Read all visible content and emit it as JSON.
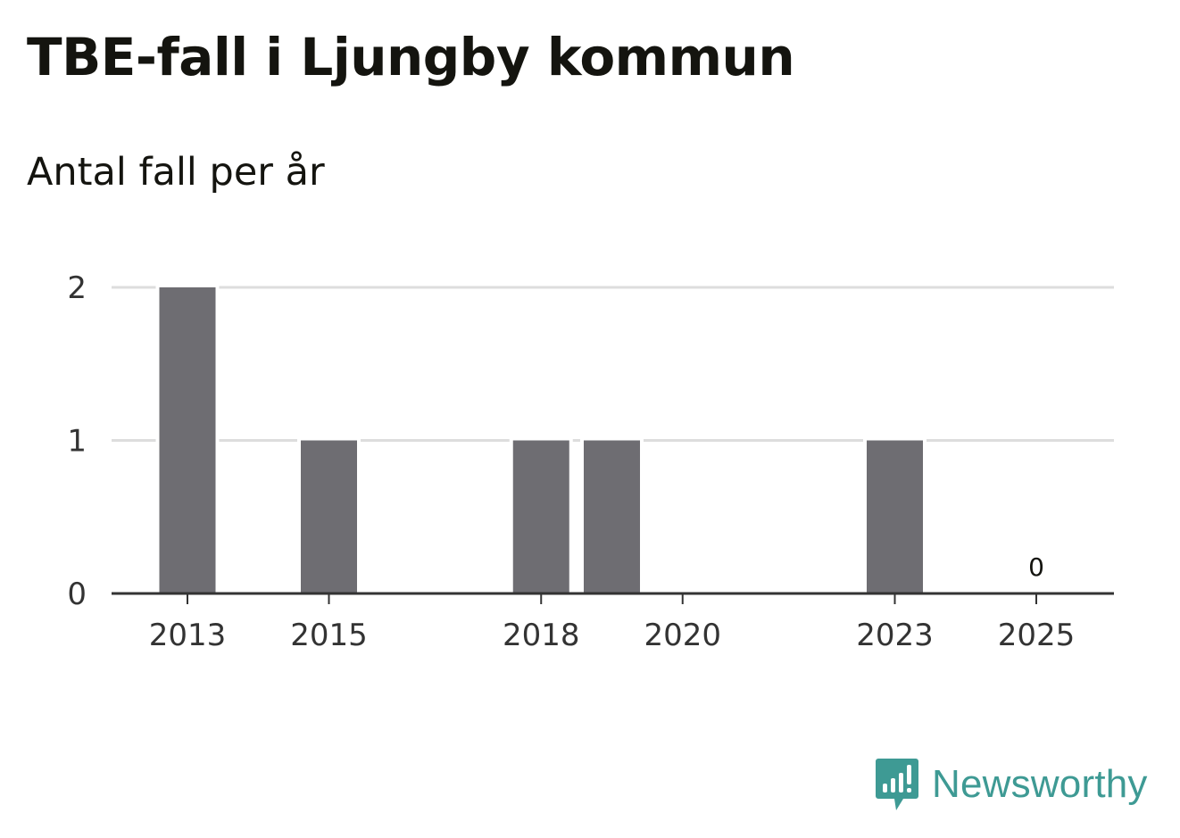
{
  "header": {
    "title": "TBE-fall i Ljungby kommun",
    "subtitle": "Antal fall per år"
  },
  "brand": {
    "name": "Newsworthy",
    "color": "#3e9a94",
    "icon": "newsworthy-chart-bubble-icon"
  },
  "chart_data": {
    "type": "bar",
    "title": "TBE-fall i Ljungby kommun",
    "subtitle": "Antal fall per år",
    "categories": [
      "2013",
      "2014",
      "2015",
      "2016",
      "2017",
      "2018",
      "2019",
      "2020",
      "2021",
      "2022",
      "2023",
      "2024",
      "2025"
    ],
    "values": [
      2,
      null,
      1,
      null,
      null,
      1,
      1,
      null,
      null,
      null,
      1,
      null,
      0
    ],
    "x_tick_labels": [
      "2013",
      "2015",
      "2018",
      "2020",
      "2023",
      "2025"
    ],
    "y_ticks": [
      0,
      1,
      2
    ],
    "ylim": [
      0,
      2
    ],
    "data_labels": [
      {
        "category": "2025",
        "text": "0"
      }
    ],
    "bar_color": "#6e6d72",
    "grid": true,
    "grid_color": "#dddddd",
    "axis_color": "#333333",
    "legend": "none"
  }
}
